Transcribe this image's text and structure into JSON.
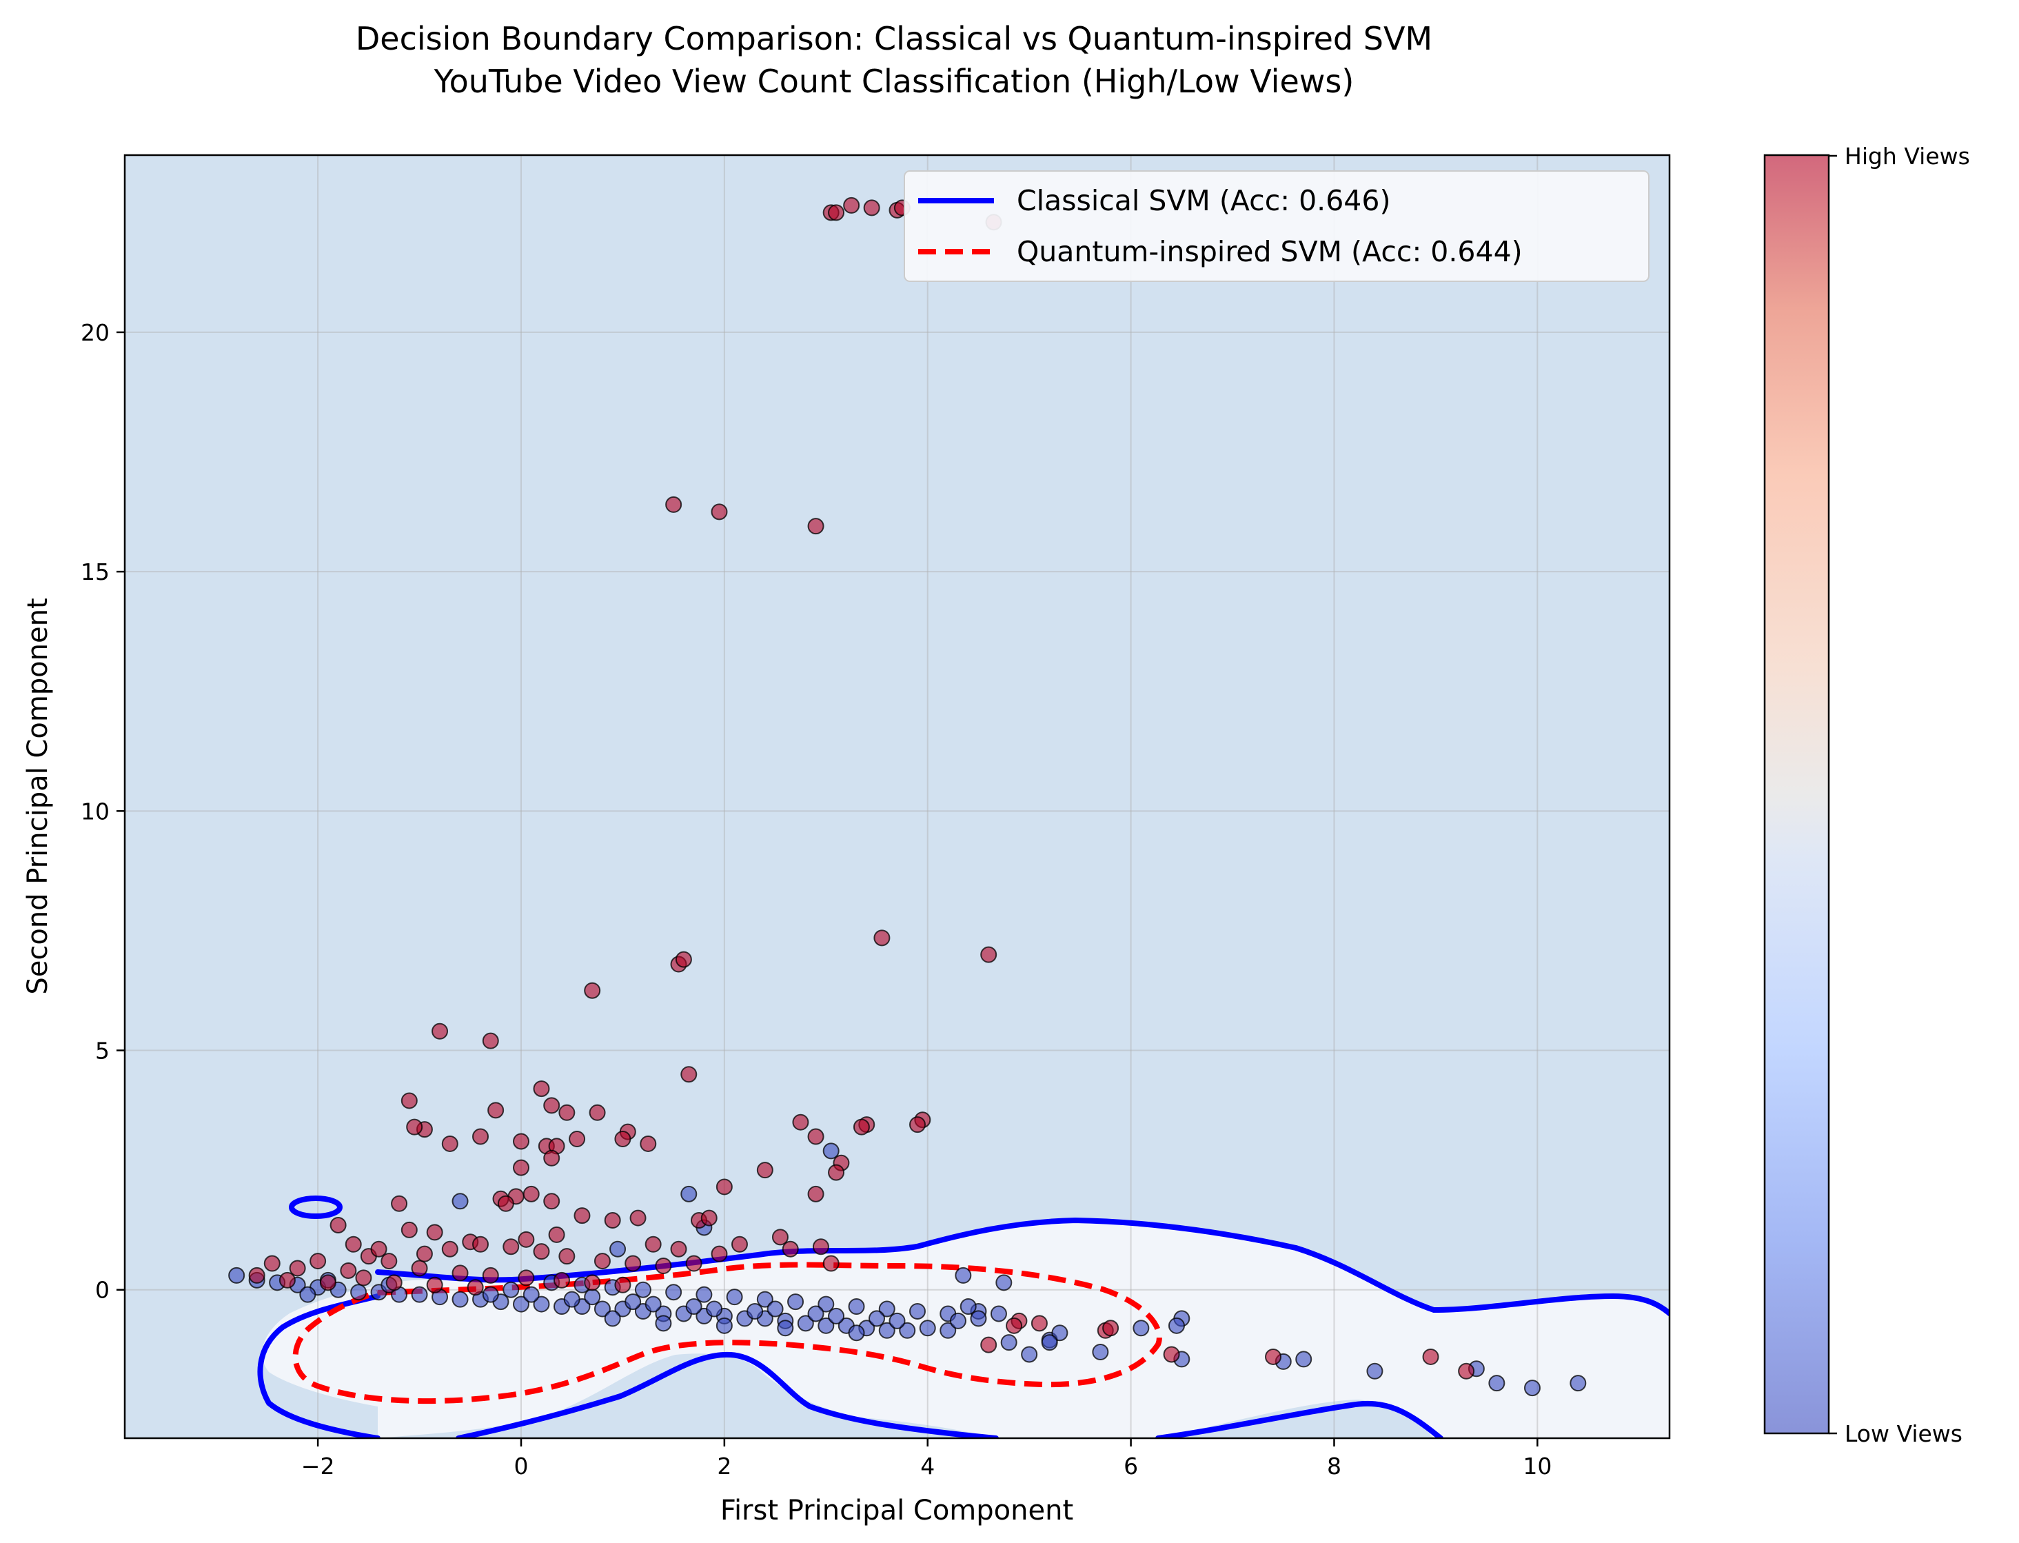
{
  "chart_data": {
    "type": "scatter",
    "title": "Decision Boundary Comparison: Classical vs Quantum-inspired SVM",
    "subtitle": "YouTube Video View Count Classification (High/Low Views)",
    "xlabel": "First Principal Component",
    "ylabel": "Second Principal Component",
    "xlim": [
      -3.9,
      11.3
    ],
    "ylim": [
      -3.1,
      23.7
    ],
    "x_ticks": [
      -2,
      0,
      2,
      4,
      6,
      8,
      10
    ],
    "x_tick_labels": [
      "−2",
      "0",
      "2",
      "4",
      "6",
      "8",
      "10"
    ],
    "y_ticks": [
      0,
      5,
      10,
      15,
      20
    ],
    "y_tick_labels": [
      "0",
      "5",
      "10",
      "15",
      "20"
    ],
    "grid": true,
    "legend_position": "top-right",
    "legend": [
      {
        "label": "Classical SVM (Acc: 0.646)",
        "color": "#0000ff",
        "style": "solid"
      },
      {
        "label": "Quantum-inspired SVM (Acc: 0.644)",
        "color": "#ff0000",
        "style": "dashed"
      }
    ],
    "colorbar": {
      "colormap": "coolwarm",
      "ticks": [
        "Low Views",
        "High Views"
      ],
      "low_color": "#3b4cc0",
      "high_color": "#b40426"
    },
    "colors": {
      "high_views": "#b40426",
      "low_views": "#3b4cc0",
      "high_region_fill": "#d2e1f0",
      "low_region_fill": "#f2f5fa"
    },
    "series": [
      {
        "name": "High Views",
        "points": [
          [
            3.05,
            22.5
          ],
          [
            3.1,
            22.5
          ],
          [
            3.25,
            22.65
          ],
          [
            3.45,
            22.6
          ],
          [
            3.7,
            22.55
          ],
          [
            3.75,
            22.6
          ],
          [
            4.65,
            22.3
          ],
          [
            1.5,
            16.4
          ],
          [
            1.95,
            16.25
          ],
          [
            2.9,
            15.95
          ],
          [
            3.55,
            7.35
          ],
          [
            4.6,
            7.0
          ],
          [
            1.55,
            6.8
          ],
          [
            1.6,
            6.9
          ],
          [
            0.7,
            6.25
          ],
          [
            -0.8,
            5.4
          ],
          [
            -0.3,
            5.2
          ],
          [
            1.65,
            4.5
          ],
          [
            0.2,
            4.2
          ],
          [
            -1.1,
            3.95
          ],
          [
            0.3,
            3.85
          ],
          [
            -0.25,
            3.75
          ],
          [
            0.45,
            3.7
          ],
          [
            0.75,
            3.7
          ],
          [
            3.95,
            3.55
          ],
          [
            2.75,
            3.5
          ],
          [
            3.9,
            3.45
          ],
          [
            3.4,
            3.45
          ],
          [
            3.35,
            3.4
          ],
          [
            -0.95,
            3.35
          ],
          [
            -1.05,
            3.4
          ],
          [
            1.05,
            3.3
          ],
          [
            -0.4,
            3.2
          ],
          [
            1.0,
            3.15
          ],
          [
            2.9,
            3.2
          ],
          [
            0.55,
            3.15
          ],
          [
            -0.7,
            3.05
          ],
          [
            1.25,
            3.05
          ],
          [
            0.0,
            3.1
          ],
          [
            0.25,
            3.0
          ],
          [
            0.35,
            3.0
          ],
          [
            3.15,
            2.65
          ],
          [
            0.3,
            2.75
          ],
          [
            3.1,
            2.45
          ],
          [
            0.0,
            2.55
          ],
          [
            2.4,
            2.5
          ],
          [
            2.0,
            2.15
          ],
          [
            2.9,
            2.0
          ],
          [
            -0.2,
            1.9
          ],
          [
            -0.05,
            1.95
          ],
          [
            0.1,
            2.0
          ],
          [
            -0.15,
            1.8
          ],
          [
            0.3,
            1.85
          ],
          [
            0.6,
            1.55
          ],
          [
            -1.2,
            1.8
          ],
          [
            1.15,
            1.5
          ],
          [
            1.75,
            1.45
          ],
          [
            1.85,
            1.5
          ],
          [
            0.9,
            1.45
          ],
          [
            -1.8,
            1.35
          ],
          [
            2.55,
            1.1
          ],
          [
            2.95,
            0.9
          ],
          [
            2.65,
            0.85
          ],
          [
            2.15,
            0.95
          ],
          [
            -1.1,
            1.25
          ],
          [
            -0.85,
            1.2
          ],
          [
            -0.5,
            1.0
          ],
          [
            -0.1,
            0.9
          ],
          [
            0.2,
            0.8
          ],
          [
            0.45,
            0.7
          ],
          [
            0.8,
            0.6
          ],
          [
            1.1,
            0.55
          ],
          [
            1.4,
            0.5
          ],
          [
            1.7,
            0.55
          ],
          [
            -1.5,
            0.7
          ],
          [
            -1.3,
            0.6
          ],
          [
            -2.0,
            0.6
          ],
          [
            -2.2,
            0.45
          ],
          [
            -2.45,
            0.55
          ],
          [
            -1.7,
            0.4
          ],
          [
            -1.0,
            0.45
          ],
          [
            -0.6,
            0.35
          ],
          [
            -0.3,
            0.3
          ],
          [
            0.05,
            0.25
          ],
          [
            0.4,
            0.2
          ],
          [
            0.7,
            0.15
          ],
          [
            1.0,
            0.1
          ],
          [
            -2.6,
            0.3
          ],
          [
            -2.3,
            0.2
          ],
          [
            -1.9,
            0.15
          ],
          [
            -1.55,
            0.25
          ],
          [
            -1.25,
            0.15
          ],
          [
            -0.85,
            0.1
          ],
          [
            -0.45,
            0.05
          ],
          [
            3.05,
            0.55
          ],
          [
            4.9,
            -0.65
          ],
          [
            4.85,
            -0.75
          ],
          [
            5.1,
            -0.7
          ],
          [
            5.75,
            -0.85
          ],
          [
            5.8,
            -0.8
          ],
          [
            4.6,
            -1.15
          ],
          [
            6.4,
            -1.35
          ],
          [
            7.4,
            -1.4
          ],
          [
            8.95,
            -1.4
          ],
          [
            9.3,
            -1.7
          ],
          [
            -0.95,
            0.75
          ],
          [
            -0.7,
            0.85
          ],
          [
            -0.4,
            0.95
          ],
          [
            0.05,
            1.05
          ],
          [
            0.35,
            1.15
          ],
          [
            -1.65,
            0.95
          ],
          [
            -1.4,
            0.85
          ],
          [
            1.3,
            0.95
          ],
          [
            1.55,
            0.85
          ],
          [
            1.95,
            0.75
          ]
        ]
      },
      {
        "name": "Low Views",
        "points": [
          [
            -2.8,
            0.3
          ],
          [
            -2.6,
            0.2
          ],
          [
            -2.4,
            0.15
          ],
          [
            -2.2,
            0.1
          ],
          [
            -2.0,
            0.05
          ],
          [
            -1.8,
            0.0
          ],
          [
            -1.6,
            -0.05
          ],
          [
            -1.4,
            -0.05
          ],
          [
            -1.2,
            -0.1
          ],
          [
            -1.0,
            -0.1
          ],
          [
            -0.8,
            -0.15
          ],
          [
            -0.6,
            -0.2
          ],
          [
            -0.4,
            -0.2
          ],
          [
            -0.2,
            -0.25
          ],
          [
            0.0,
            -0.3
          ],
          [
            0.2,
            -0.3
          ],
          [
            0.4,
            -0.35
          ],
          [
            0.6,
            -0.35
          ],
          [
            0.8,
            -0.4
          ],
          [
            1.0,
            -0.4
          ],
          [
            1.2,
            -0.45
          ],
          [
            1.4,
            -0.5
          ],
          [
            1.6,
            -0.5
          ],
          [
            1.8,
            -0.55
          ],
          [
            2.0,
            -0.55
          ],
          [
            2.2,
            -0.6
          ],
          [
            2.4,
            -0.6
          ],
          [
            2.6,
            -0.65
          ],
          [
            2.8,
            -0.7
          ],
          [
            3.0,
            -0.75
          ],
          [
            3.2,
            -0.75
          ],
          [
            3.4,
            -0.8
          ],
          [
            3.6,
            -0.85
          ],
          [
            3.8,
            -0.85
          ],
          [
            4.0,
            -0.8
          ],
          [
            4.2,
            -0.85
          ],
          [
            0.3,
            0.15
          ],
          [
            0.6,
            0.1
          ],
          [
            0.9,
            0.05
          ],
          [
            1.2,
            0.0
          ],
          [
            1.5,
            -0.05
          ],
          [
            1.8,
            -0.1
          ],
          [
            2.1,
            -0.15
          ],
          [
            2.4,
            -0.2
          ],
          [
            2.7,
            -0.25
          ],
          [
            3.0,
            -0.3
          ],
          [
            3.3,
            -0.35
          ],
          [
            3.6,
            -0.4
          ],
          [
            3.9,
            -0.45
          ],
          [
            4.2,
            -0.5
          ],
          [
            4.5,
            -0.45
          ],
          [
            4.4,
            -0.35
          ],
          [
            4.7,
            -0.5
          ],
          [
            4.75,
            0.15
          ],
          [
            4.35,
            0.3
          ],
          [
            4.5,
            -0.6
          ],
          [
            4.3,
            -0.65
          ],
          [
            -0.6,
            1.85
          ],
          [
            1.65,
            2.0
          ],
          [
            3.05,
            2.9
          ],
          [
            1.8,
            1.3
          ],
          [
            0.95,
            0.85
          ],
          [
            4.8,
            -1.1
          ],
          [
            5.0,
            -1.35
          ],
          [
            5.2,
            -1.05
          ],
          [
            5.3,
            -0.9
          ],
          [
            5.2,
            -1.1
          ],
          [
            5.7,
            -1.3
          ],
          [
            6.1,
            -0.8
          ],
          [
            6.5,
            -0.6
          ],
          [
            6.45,
            -0.75
          ],
          [
            6.5,
            -1.45
          ],
          [
            7.5,
            -1.5
          ],
          [
            7.7,
            -1.45
          ],
          [
            8.4,
            -1.7
          ],
          [
            9.4,
            -1.65
          ],
          [
            9.6,
            -1.95
          ],
          [
            9.95,
            -2.05
          ],
          [
            10.4,
            -1.95
          ],
          [
            -0.3,
            -0.1
          ],
          [
            -0.1,
            0.0
          ],
          [
            0.1,
            -0.1
          ],
          [
            0.5,
            -0.2
          ],
          [
            0.7,
            -0.15
          ],
          [
            1.1,
            -0.25
          ],
          [
            1.3,
            -0.3
          ],
          [
            1.7,
            -0.35
          ],
          [
            1.9,
            -0.4
          ],
          [
            2.3,
            -0.45
          ],
          [
            2.5,
            -0.4
          ],
          [
            2.9,
            -0.5
          ],
          [
            3.1,
            -0.55
          ],
          [
            3.5,
            -0.6
          ],
          [
            3.7,
            -0.65
          ],
          [
            2.0,
            -0.75
          ],
          [
            2.6,
            -0.8
          ],
          [
            3.3,
            -0.9
          ],
          [
            1.4,
            -0.7
          ],
          [
            0.9,
            -0.6
          ],
          [
            -1.9,
            0.2
          ],
          [
            -2.1,
            -0.1
          ],
          [
            -1.3,
            0.1
          ]
        ]
      }
    ]
  }
}
